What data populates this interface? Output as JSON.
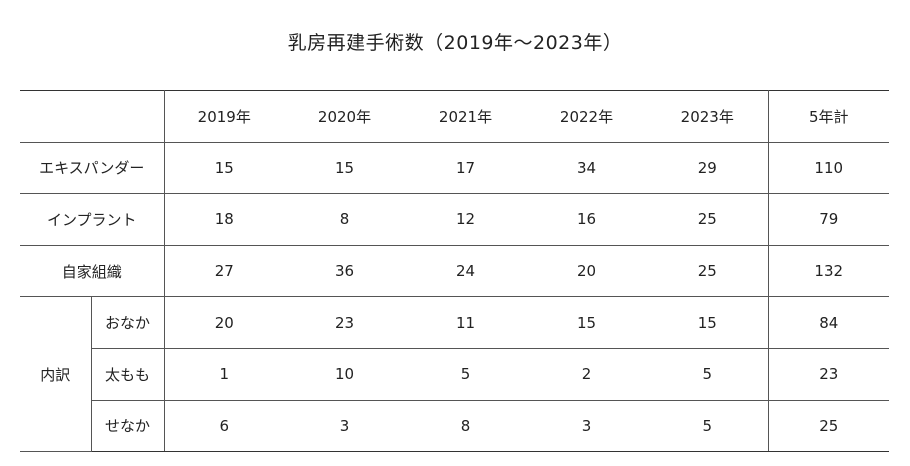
{
  "title": "乳房再建手術数（2019年～2023年）",
  "columns": [
    "2019年",
    "2020年",
    "2021年",
    "2022年",
    "2023年",
    "5年計"
  ],
  "rows": [
    {
      "label": "エキスパンダー",
      "values": [
        "15",
        "15",
        "17",
        "34",
        "29",
        "110"
      ]
    },
    {
      "label": "インプラント",
      "values": [
        "18",
        "8",
        "12",
        "16",
        "25",
        "79"
      ]
    },
    {
      "label": "自家組織",
      "values": [
        "27",
        "36",
        "24",
        "20",
        "25",
        "132"
      ]
    }
  ],
  "breakdown": {
    "label": "内訳",
    "rows": [
      {
        "label": "おなか",
        "values": [
          "20",
          "23",
          "11",
          "15",
          "15",
          "84"
        ]
      },
      {
        "label": "太もも",
        "values": [
          "1",
          "10",
          "5",
          "2",
          "5",
          "23"
        ]
      },
      {
        "label": "せなか",
        "values": [
          "6",
          "3",
          "8",
          "3",
          "5",
          "25"
        ]
      }
    ]
  }
}
